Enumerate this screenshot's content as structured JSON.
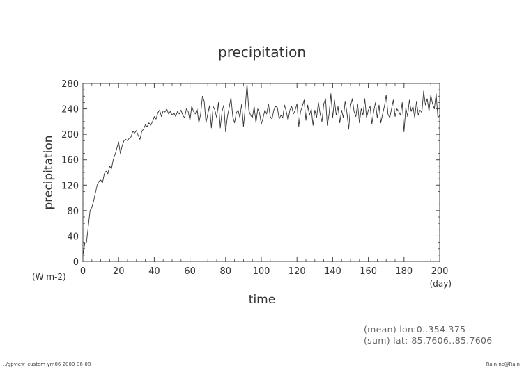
{
  "chart_data": {
    "type": "line",
    "title": "precipitation",
    "xlabel": "time",
    "ylabel": "precipitation",
    "x_unit": "(day)",
    "y_unit": "(W m-2)",
    "xlim": [
      0,
      200
    ],
    "ylim": [
      0,
      280
    ],
    "xticks": [
      0,
      20,
      40,
      60,
      80,
      100,
      120,
      140,
      160,
      180,
      200
    ],
    "yticks": [
      0,
      40,
      80,
      120,
      160,
      200,
      240,
      280
    ],
    "grid": false,
    "series": [
      {
        "x": [
          0,
          1,
          2,
          3,
          4,
          5,
          6,
          7,
          8,
          9,
          10,
          11,
          12,
          13,
          14,
          15,
          16,
          17,
          18,
          19,
          20,
          21,
          22,
          23,
          24,
          25,
          26,
          27,
          28,
          29,
          30,
          31,
          32,
          33,
          34,
          35,
          36,
          37,
          38,
          39,
          40,
          41,
          42,
          43,
          44,
          45,
          46,
          47,
          48,
          49,
          50,
          51,
          52,
          53,
          54,
          55,
          56,
          57,
          58,
          59,
          60,
          61,
          62,
          63,
          64,
          65,
          66,
          67,
          68,
          69,
          70,
          71,
          72,
          73,
          74,
          75,
          76,
          77,
          78,
          79,
          80,
          81,
          82,
          83,
          84,
          85,
          86,
          87,
          88,
          89,
          90,
          91,
          92,
          93,
          94,
          95,
          96,
          97,
          98,
          99,
          100,
          101,
          102,
          103,
          104,
          105,
          106,
          107,
          108,
          109,
          110,
          111,
          112,
          113,
          114,
          115,
          116,
          117,
          118,
          119,
          120,
          121,
          122,
          123,
          124,
          125,
          126,
          127,
          128,
          129,
          130,
          131,
          132,
          133,
          134,
          135,
          136,
          137,
          138,
          139,
          140,
          141,
          142,
          143,
          144,
          145,
          146,
          147,
          148,
          149,
          150,
          151,
          152,
          153,
          154,
          155,
          156,
          157,
          158,
          159,
          160,
          161,
          162,
          163,
          164,
          165,
          166,
          167,
          168,
          169,
          170,
          171,
          172,
          173,
          174,
          175,
          176,
          177,
          178,
          179,
          180,
          181,
          182,
          183,
          184,
          185,
          186,
          187,
          188,
          189,
          190,
          191,
          192,
          193,
          194,
          195,
          196,
          197,
          198,
          199,
          200
        ],
        "y": [
          10,
          28,
          30,
          55,
          80,
          85,
          95,
          108,
          120,
          126,
          128,
          124,
          138,
          142,
          138,
          150,
          146,
          160,
          168,
          178,
          188,
          170,
          182,
          190,
          192,
          190,
          194,
          196,
          205,
          202,
          206,
          198,
          192,
          205,
          208,
          215,
          212,
          218,
          214,
          220,
          228,
          224,
          234,
          238,
          228,
          237,
          235,
          240,
          232,
          236,
          230,
          234,
          228,
          236,
          232,
          238,
          230,
          226,
          240,
          236,
          222,
          244,
          236,
          232,
          240,
          218,
          232,
          260,
          252,
          218,
          232,
          245,
          210,
          244,
          238,
          226,
          250,
          210,
          236,
          246,
          204,
          228,
          242,
          258,
          228,
          218,
          234,
          238,
          226,
          248,
          212,
          242,
          280,
          238,
          230,
          226,
          244,
          218,
          240,
          234,
          216,
          226,
          238,
          232,
          248,
          228,
          224,
          238,
          244,
          242,
          224,
          230,
          226,
          246,
          236,
          222,
          238,
          244,
          232,
          238,
          248,
          212,
          236,
          244,
          254,
          222,
          246,
          230,
          240,
          214,
          238,
          226,
          250,
          232,
          220,
          248,
          256,
          214,
          232,
          264,
          226,
          254,
          230,
          244,
          218,
          238,
          226,
          252,
          234,
          208,
          244,
          256,
          236,
          228,
          248,
          218,
          240,
          230,
          256,
          226,
          238,
          244,
          216,
          236,
          250,
          226,
          246,
          218,
          232,
          244,
          262,
          232,
          226,
          240,
          254,
          228,
          240,
          236,
          230,
          250,
          204,
          242,
          228,
          254,
          236,
          244,
          226,
          252,
          230,
          238,
          234,
          268,
          246,
          256,
          236,
          262,
          248,
          240,
          264,
          226,
          230
        ]
      }
    ]
  },
  "footer": {
    "mean_line": "(mean) lon:0..354.375",
    "sum_line": "(sum) lat:-85.7606..85.7606",
    "left_note": "../gpview_custom-ym06  2009-06-08",
    "right_note": "Rain.nc@Rain"
  }
}
